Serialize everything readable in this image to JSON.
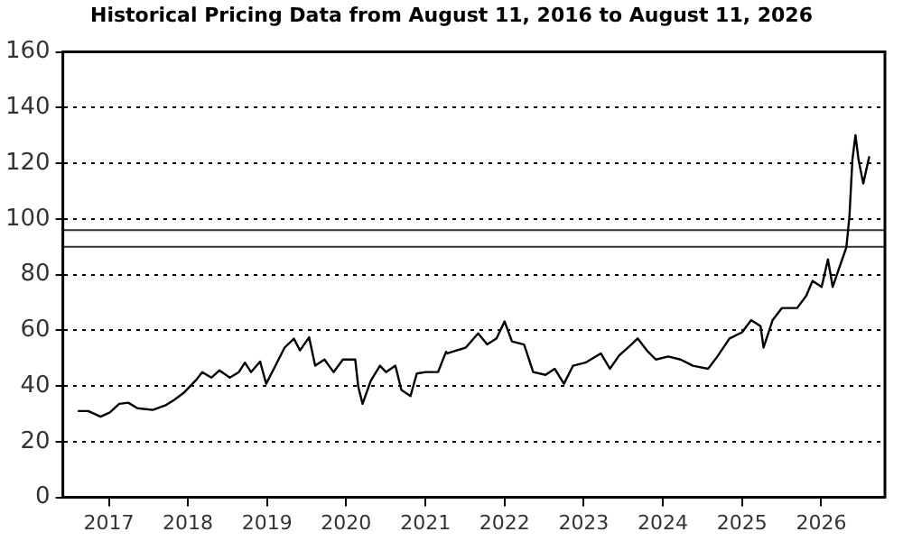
{
  "chart_data": {
    "type": "line",
    "title": "Historical Pricing Data from August 11, 2016 to August 11, 2026",
    "x": [
      "2016-08-11",
      "2016-09-28",
      "2016-11-24",
      "2017-01-06",
      "2017-02-18",
      "2017-04-01",
      "2017-05-13",
      "2017-07-23",
      "2017-09-18",
      "2017-10-30",
      "2017-12-12",
      "2018-02-06",
      "2018-03-08",
      "2018-04-19",
      "2018-05-26",
      "2018-07-13",
      "2018-08-24",
      "2018-09-21",
      "2018-10-19",
      "2018-11-30",
      "2018-12-28",
      "2019-02-09",
      "2019-03-23",
      "2019-05-05",
      "2019-06-02",
      "2019-07-14",
      "2019-08-11",
      "2019-09-23",
      "2019-11-04",
      "2019-12-17",
      "2020-02-12",
      "2020-02-26",
      "2020-03-17",
      "2020-04-23",
      "2020-06-05",
      "2020-07-03",
      "2020-08-15",
      "2020-09-12",
      "2020-10-24",
      "2020-11-22",
      "2021-01-03",
      "2021-02-28",
      "2021-04-06",
      "2021-04-12",
      "2021-07-06",
      "2021-09-01",
      "2021-10-13",
      "2021-11-25",
      "2022-01-01",
      "2022-02-04",
      "2022-04-01",
      "2022-05-13",
      "2022-07-09",
      "2022-08-20",
      "2022-10-02",
      "2022-11-13",
      "2023-01-09",
      "2023-03-21",
      "2023-05-02",
      "2023-06-14",
      "2023-08-09",
      "2023-09-07",
      "2023-10-19",
      "2023-11-30",
      "2024-01-26",
      "2024-03-23",
      "2024-05-19",
      "2024-07-28",
      "2024-09-09",
      "2024-11-04",
      "2025-01-01",
      "2025-02-12",
      "2025-03-27",
      "2025-04-10",
      "2025-05-22",
      "2025-07-03",
      "2025-09-12",
      "2025-10-24",
      "2025-11-22",
      "2026-01-03",
      "2026-02-01",
      "2026-02-23",
      "2026-03-29",
      "2026-04-27",
      "2026-05-11",
      "2026-05-25",
      "2026-06-08",
      "2026-06-22",
      "2026-07-14",
      "2026-07-28",
      "2026-08-11"
    ],
    "series": [
      {
        "color": "#000000",
        "values": [
          31,
          31,
          29,
          30.5,
          33.6,
          34,
          32,
          31.4,
          33,
          35,
          37.5,
          42,
          45,
          43,
          45.6,
          43,
          45,
          48.4,
          45,
          48.8,
          40.8,
          47.3,
          53.8,
          57,
          52.8,
          57.5,
          47.3,
          49.5,
          45,
          49.5,
          49.5,
          39.7,
          33.6,
          41.8,
          47.3,
          45,
          47.3,
          38.6,
          36.4,
          44.5,
          45,
          45,
          52.3,
          51.7,
          53.8,
          58.9,
          54.9,
          57.1,
          63.2,
          56,
          54.9,
          45,
          44,
          46.2,
          40.8,
          47.3,
          48.4,
          51.7,
          46.2,
          51,
          54.9,
          57.1,
          52.8,
          49.5,
          50.6,
          49.5,
          47.3,
          46.2,
          50.6,
          57.1,
          59.3,
          63.7,
          61.5,
          53.8,
          63.7,
          68,
          68,
          72.4,
          77.8,
          75.6,
          85.5,
          75.6,
          83.3,
          89.8,
          100.7,
          121.4,
          130.1,
          121.4,
          112.7,
          117.7,
          122.5
        ]
      }
    ],
    "xlim": [
      "2016-06-03",
      "2026-10-22"
    ],
    "xticks": [
      {
        "value": "2017",
        "label": "2017"
      },
      {
        "value": "2018",
        "label": "2018"
      },
      {
        "value": "2019",
        "label": "2019"
      },
      {
        "value": "2020",
        "label": "2020"
      },
      {
        "value": "2021",
        "label": "2021"
      },
      {
        "value": "2022",
        "label": "2022"
      },
      {
        "value": "2023",
        "label": "2023"
      },
      {
        "value": "2024",
        "label": "2024"
      },
      {
        "value": "2025",
        "label": "2025"
      },
      {
        "value": "2026",
        "label": "2026"
      }
    ],
    "ylim": [
      0,
      160
    ],
    "yticks": [
      0,
      20,
      40,
      60,
      80,
      100,
      120,
      140,
      160
    ],
    "grid": "y",
    "marker": "none",
    "line_style": "solid",
    "legend": false,
    "ref_lines": [
      {
        "axis": "y",
        "value": 96,
        "color": "#333333"
      },
      {
        "axis": "y",
        "value": 90,
        "color": "#333333"
      }
    ]
  }
}
